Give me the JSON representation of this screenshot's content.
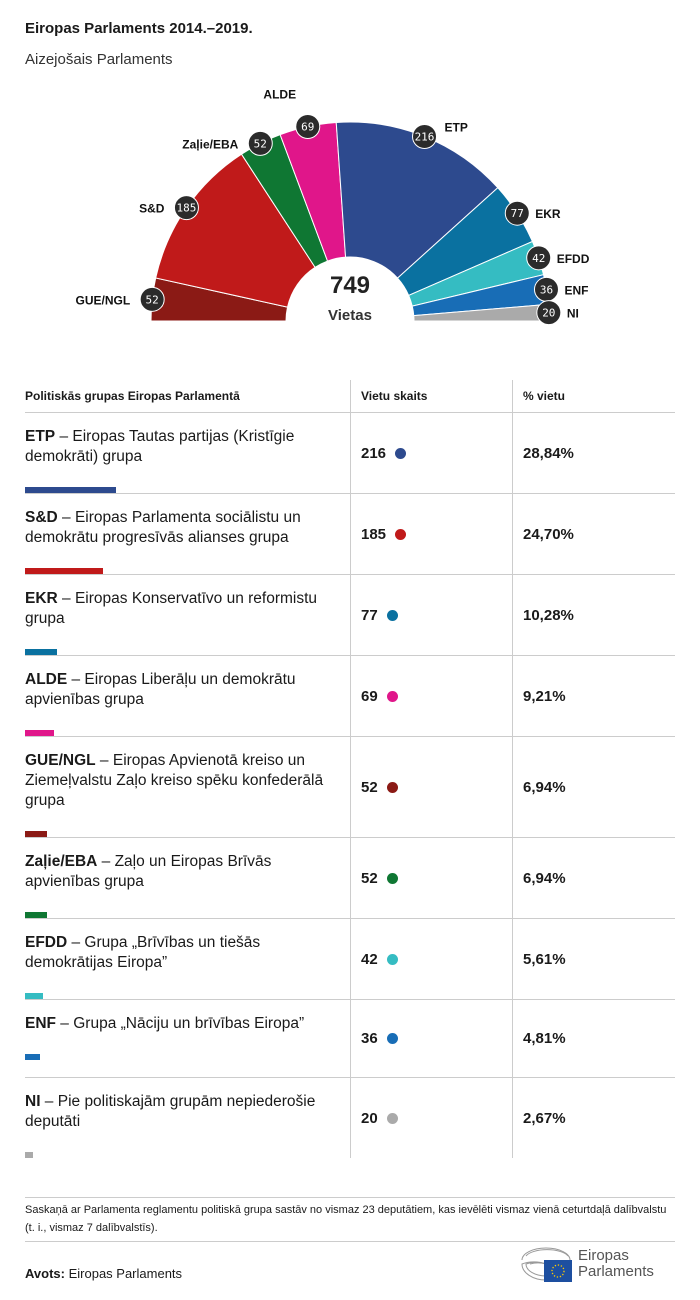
{
  "title": "Eiropas Parlaments 2014.–2019.",
  "subtitle": "Aizejošais Parlaments",
  "chart_data": {
    "type": "pie",
    "variant": "semicircle-parliament",
    "total": 749,
    "total_label": "Vietas",
    "series": [
      {
        "name": "GUE/NGL",
        "value": 52,
        "color": "#8b1a15"
      },
      {
        "name": "S&D",
        "value": 185,
        "color": "#c01a1a"
      },
      {
        "name": "Zaļie/EBA",
        "value": 52,
        "color": "#0f7733"
      },
      {
        "name": "ALDE",
        "value": 69,
        "color": "#e0168a"
      },
      {
        "name": "ETP",
        "value": 216,
        "color": "#2d4a8e"
      },
      {
        "name": "EKR",
        "value": 77,
        "color": "#0a71a0"
      },
      {
        "name": "EFDD",
        "value": 42,
        "color": "#35bcc2"
      },
      {
        "name": "ENF",
        "value": 36,
        "color": "#186db6"
      },
      {
        "name": "NI",
        "value": 20,
        "color": "#aaaaaa"
      }
    ]
  },
  "table": {
    "headers": [
      "Politiskās grupas Eiropas Parlamentā",
      "Vietu skaits",
      "% vietu"
    ],
    "rows": [
      {
        "abbr": "ETP",
        "desc": " – Eiropas Tautas partijas (Kristīgie demokrāti) grupa",
        "seats": 216,
        "pct": "28,84%",
        "color": "#2d4a8e"
      },
      {
        "abbr": "S&D",
        "desc": " – Eiropas Parlamenta sociālistu un demokrātu progresīvās alianses grupa",
        "seats": 185,
        "pct": "24,70%",
        "color": "#c01a1a"
      },
      {
        "abbr": "EKR",
        "desc": " – Eiropas Konservatīvo un reformistu grupa",
        "seats": 77,
        "pct": "10,28%",
        "color": "#0a71a0"
      },
      {
        "abbr": "ALDE",
        "desc": " – Eiropas Liberāļu un demokrātu apvienības grupa",
        "seats": 69,
        "pct": "9,21%",
        "color": "#e0168a"
      },
      {
        "abbr": "GUE/NGL",
        "desc": " – Eiropas Apvienotā kreiso un Ziemeļvalstu Zaļo kreiso spēku konfederālā grupa",
        "seats": 52,
        "pct": "6,94%",
        "color": "#8b1a15"
      },
      {
        "abbr": "Zaļie/EBA",
        "desc": " – Zaļo un Eiropas Brīvās apvienības grupa",
        "seats": 52,
        "pct": "6,94%",
        "color": "#0f7733"
      },
      {
        "abbr": "EFDD",
        "desc": " – Grupa „Brīvības un tiešās demokrātijas Eiropa”",
        "seats": 42,
        "pct": "5,61%",
        "color": "#35bcc2"
      },
      {
        "abbr": "ENF",
        "desc": " – Grupa „Nāciju un brīvības Eiropa”",
        "seats": 36,
        "pct": "4,81%",
        "color": "#186db6"
      },
      {
        "abbr": "NI",
        "desc": " – Pie politiskajām grupām nepiederošie deputāti",
        "seats": 20,
        "pct": "2,67%",
        "color": "#aaaaaa"
      }
    ]
  },
  "note": "Saskaņā ar Parlamenta reglamentu politiskā grupa sastāv no vismaz 23 deputātiem, kas ievēlēti vismaz vienā ceturtdaļā dalībvalstu (t. i., vismaz 7 dalībvalstīs).",
  "source_label": "Avots:",
  "source": "Eiropas Parlaments",
  "logo": {
    "line1": "Eiropas",
    "line2": "Parlaments"
  }
}
